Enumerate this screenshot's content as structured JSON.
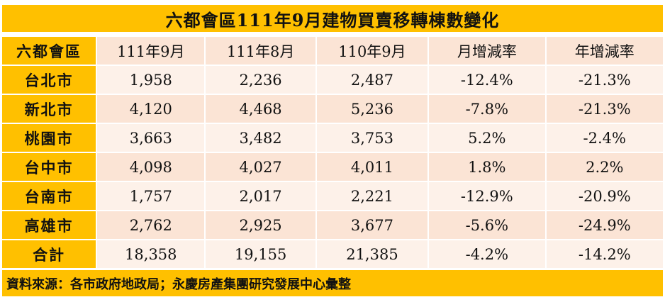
{
  "title": "六都會區111年9月建物買賣移轉棟數變化",
  "headers": [
    "六都會區",
    "111年9月",
    "111年8月",
    "110年9月",
    "月增減率",
    "年增減率"
  ],
  "rows": [
    [
      "台北市",
      "1,958",
      "2,236",
      "2,487",
      "-12.4%",
      "-21.3%"
    ],
    [
      "新北市",
      "4,120",
      "4,468",
      "5,236",
      "-7.8%",
      "-21.3%"
    ],
    [
      "桃園市",
      "3,663",
      "3,482",
      "3,753",
      "5.2%",
      "-2.4%"
    ],
    [
      "台中市",
      "4,098",
      "4,027",
      "4,011",
      "1.8%",
      "2.2%"
    ],
    [
      "台南市",
      "1,757",
      "2,017",
      "2,221",
      "-12.9%",
      "-20.9%"
    ],
    [
      "高雄市",
      "2,762",
      "2,925",
      "3,677",
      "-5.6%",
      "-24.9%"
    ],
    [
      "合計",
      "18,358",
      "19,155",
      "21,385",
      "-4.2%",
      "-14.2%"
    ]
  ],
  "footer": "資料來源：各市政府地政局；永慶房產集團研究發展中心彙整",
  "colors": {
    "accent": "#FFC000",
    "row_light": "#FDF1E9",
    "row_dark": "#FBE4D5"
  }
}
